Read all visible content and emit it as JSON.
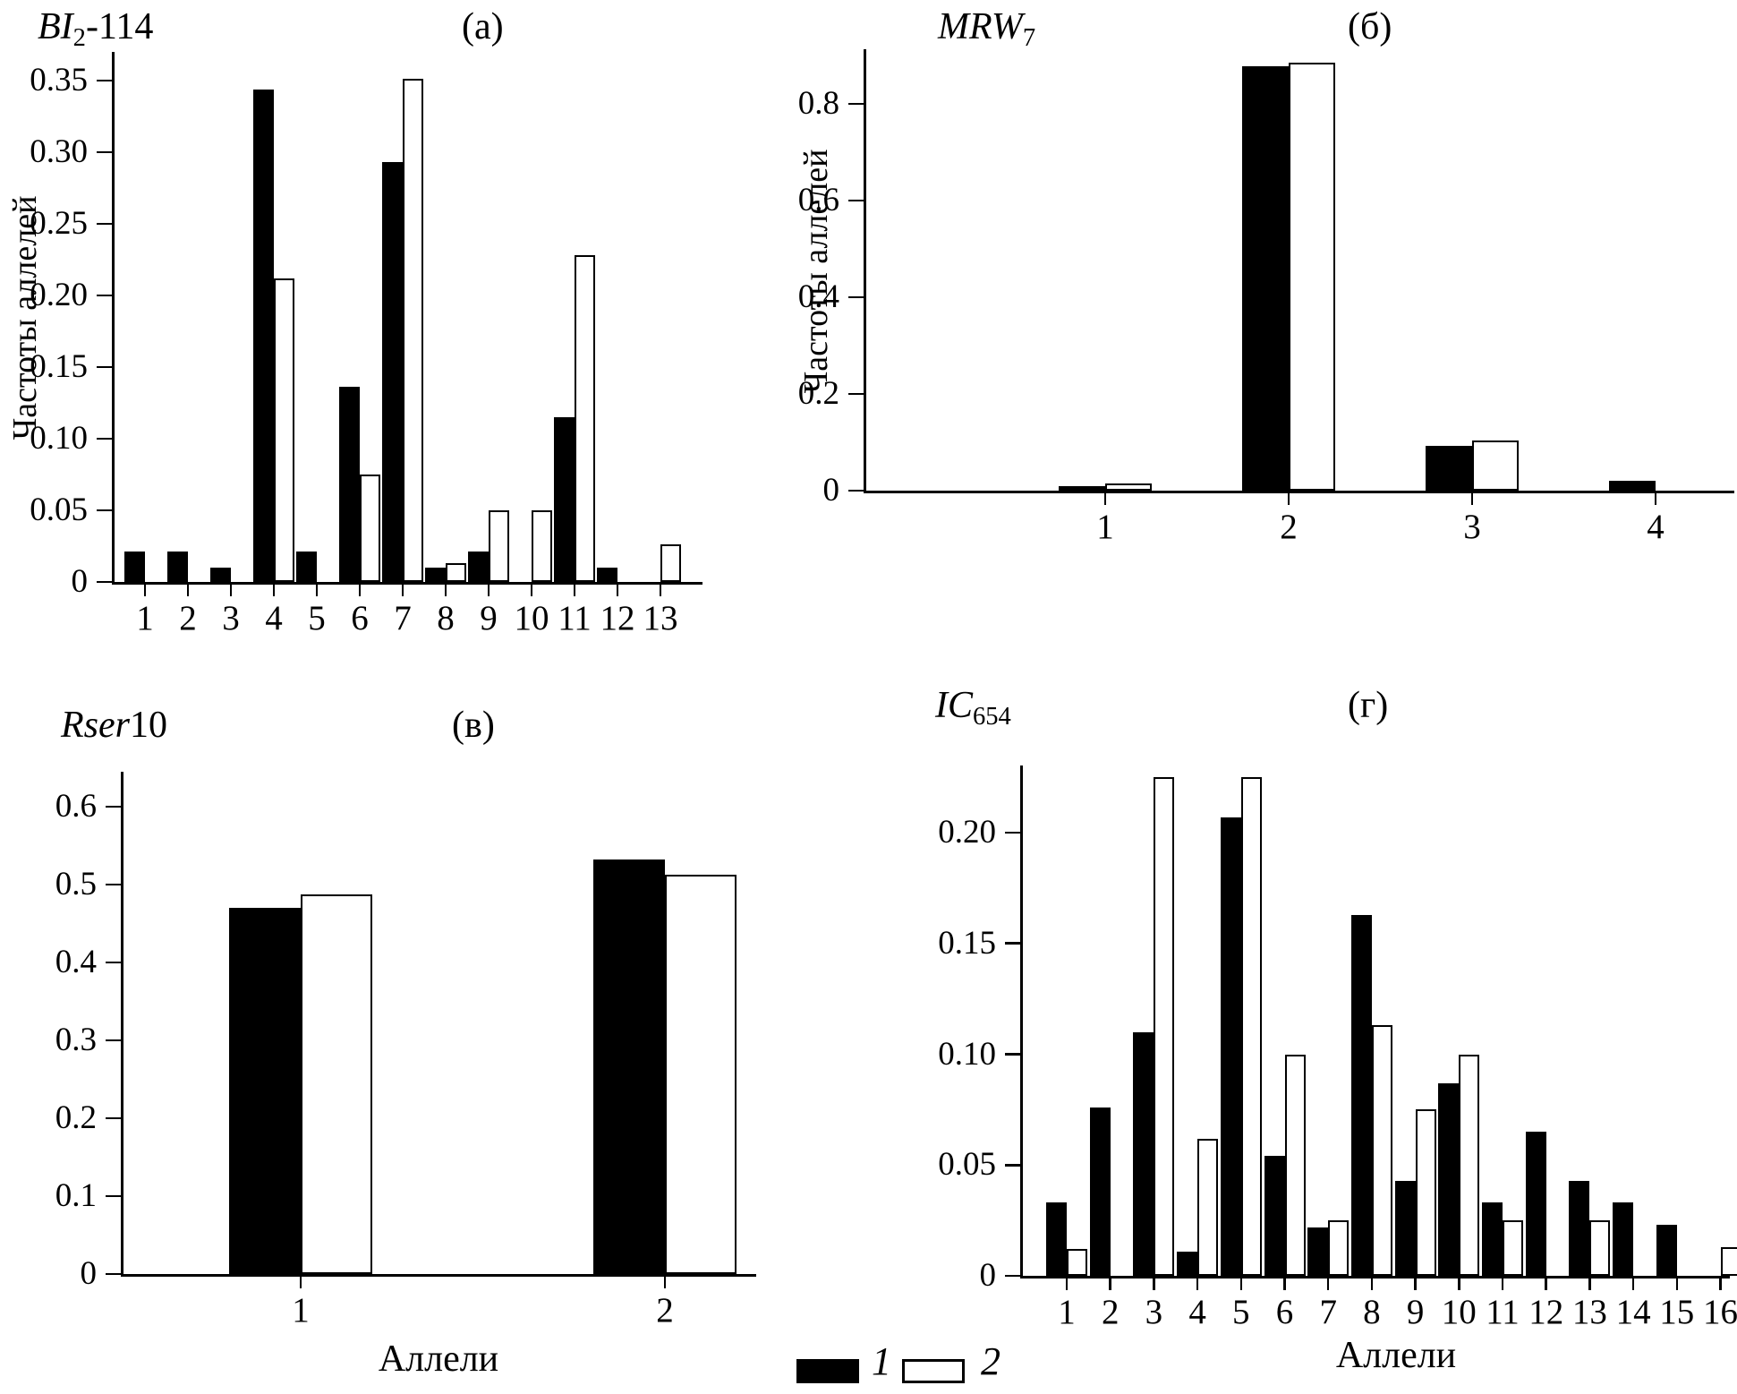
{
  "colors": {
    "series1": "#000000",
    "series2": "#ffffff",
    "axis": "#000000"
  },
  "legend": {
    "items": [
      {
        "swatch": "black",
        "label": "1"
      },
      {
        "swatch": "white",
        "label": "2"
      }
    ]
  },
  "chart_data": [
    {
      "id": "a",
      "type": "bar",
      "panel_label": "(а)",
      "marker": {
        "main": "BI",
        "sub": "2",
        "suffix": "-114"
      },
      "ylabel": "Частоты аллелей",
      "xlabel": "",
      "ylim": [
        0,
        0.37
      ],
      "grid": false,
      "categories": [
        "1",
        "2",
        "3",
        "4",
        "5",
        "6",
        "7",
        "8",
        "9",
        "10",
        "11",
        "12",
        "13"
      ],
      "yticks": [
        {
          "v": 0,
          "label": "0"
        },
        {
          "v": 0.05,
          "label": "0.05"
        },
        {
          "v": 0.1,
          "label": "0.10"
        },
        {
          "v": 0.15,
          "label": "0.15"
        },
        {
          "v": 0.2,
          "label": "0.20"
        },
        {
          "v": 0.25,
          "label": "0.25"
        },
        {
          "v": 0.3,
          "label": "0.30"
        },
        {
          "v": 0.35,
          "label": "0.35"
        }
      ],
      "series": [
        {
          "name": "1",
          "color": "black",
          "values": [
            0.021,
            0.021,
            0.01,
            0.344,
            0.021,
            0.136,
            0.293,
            0.01,
            0.021,
            0,
            0.115,
            0.01,
            0
          ]
        },
        {
          "name": "2",
          "color": "white",
          "values": [
            0,
            0,
            0,
            0.212,
            0,
            0.075,
            0.351,
            0.013,
            0.05,
            0.05,
            0.228,
            0,
            0.026
          ]
        }
      ]
    },
    {
      "id": "b",
      "type": "bar",
      "panel_label": "(б)",
      "marker": {
        "main": "MRW",
        "sub": "7",
        "suffix": ""
      },
      "ylabel": "Частоты аллелей",
      "xlabel": "",
      "ylim": [
        0,
        0.92
      ],
      "grid": false,
      "categories": [
        "1",
        "2",
        "3",
        "4"
      ],
      "yticks": [
        {
          "v": 0,
          "label": "0"
        },
        {
          "v": 0.2,
          "label": "0.2"
        },
        {
          "v": 0.4,
          "label": "0.4"
        },
        {
          "v": 0.6,
          "label": "0.6"
        },
        {
          "v": 0.8,
          "label": "0.8"
        }
      ],
      "series": [
        {
          "name": "1",
          "color": "black",
          "values": [
            0.01,
            0.878,
            0.093,
            0.02
          ]
        },
        {
          "name": "2",
          "color": "white",
          "values": [
            0.014,
            0.886,
            0.104,
            0
          ]
        }
      ]
    },
    {
      "id": "v",
      "type": "bar",
      "panel_label": "(в)",
      "marker": {
        "main": "Rser",
        "sub": "",
        "suffix": "10"
      },
      "ylabel": "",
      "xlabel": "Аллели",
      "ylim": [
        0,
        0.65
      ],
      "grid": false,
      "categories": [
        "1",
        "2"
      ],
      "yticks": [
        {
          "v": 0,
          "label": "0"
        },
        {
          "v": 0.1,
          "label": "0.1"
        },
        {
          "v": 0.2,
          "label": "0.2"
        },
        {
          "v": 0.3,
          "label": "0.3"
        },
        {
          "v": 0.4,
          "label": "0.4"
        },
        {
          "v": 0.5,
          "label": "0.5"
        },
        {
          "v": 0.6,
          "label": "0.6"
        }
      ],
      "series": [
        {
          "name": "1",
          "color": "black",
          "values": [
            0.47,
            0.532
          ]
        },
        {
          "name": "2",
          "color": "white",
          "values": [
            0.487,
            0.513
          ]
        }
      ]
    },
    {
      "id": "g",
      "type": "bar",
      "panel_label": "(г)",
      "marker": {
        "main": "IC",
        "sub": "654",
        "suffix": ""
      },
      "ylabel": "",
      "xlabel": "Аллели",
      "ylim": [
        0,
        0.23
      ],
      "grid": false,
      "categories": [
        "1",
        "2",
        "3",
        "4",
        "5",
        "6",
        "7",
        "8",
        "9",
        "10",
        "11",
        "12",
        "13",
        "14",
        "15",
        "16"
      ],
      "yticks": [
        {
          "v": 0,
          "label": "0"
        },
        {
          "v": 0.05,
          "label": "0.05"
        },
        {
          "v": 0.1,
          "label": "0.10"
        },
        {
          "v": 0.15,
          "label": "0.15"
        },
        {
          "v": 0.2,
          "label": "0.20"
        }
      ],
      "series": [
        {
          "name": "1",
          "color": "black",
          "values": [
            0.033,
            0.076,
            0.11,
            0.011,
            0.207,
            0.054,
            0.022,
            0.163,
            0.043,
            0.087,
            0.033,
            0.065,
            0.043,
            0.033,
            0.023,
            0
          ]
        },
        {
          "name": "2",
          "color": "white",
          "values": [
            0.012,
            0,
            0.225,
            0.062,
            0.225,
            0.1,
            0.025,
            0.113,
            0.075,
            0.1,
            0.025,
            0,
            0.025,
            0,
            0,
            0.013
          ]
        }
      ]
    }
  ]
}
